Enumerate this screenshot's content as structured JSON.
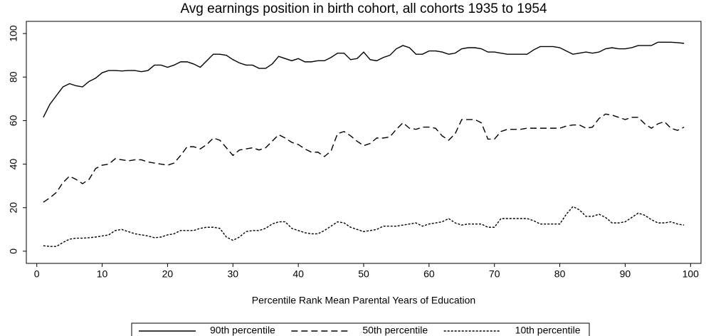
{
  "chart_data": {
    "type": "line",
    "title": "Avg earnings position in birth cohort, all cohorts 1935 to 1954",
    "x_label": "Percentile Rank Mean Parental Years of Education",
    "x": [
      1,
      2,
      3,
      4,
      5,
      6,
      7,
      8,
      9,
      10,
      11,
      12,
      13,
      14,
      15,
      16,
      17,
      18,
      19,
      20,
      21,
      22,
      23,
      24,
      25,
      26,
      27,
      28,
      29,
      30,
      31,
      32,
      33,
      34,
      35,
      36,
      37,
      38,
      39,
      40,
      41,
      42,
      43,
      44,
      45,
      46,
      47,
      48,
      49,
      50,
      51,
      52,
      53,
      54,
      55,
      56,
      57,
      58,
      59,
      60,
      61,
      62,
      63,
      64,
      65,
      66,
      67,
      68,
      69,
      70,
      71,
      72,
      73,
      74,
      75,
      76,
      77,
      78,
      79,
      80,
      81,
      82,
      83,
      84,
      85,
      86,
      87,
      88,
      89,
      90,
      91,
      92,
      93,
      94,
      95,
      96,
      97,
      98,
      99
    ],
    "series": [
      {
        "name": "90th percentile",
        "color": "#000000",
        "line_style": "solid",
        "values": [
          61.5,
          67.5,
          71.5,
          75.5,
          77,
          76,
          75.5,
          78,
          79.5,
          82,
          83,
          83,
          82.8,
          83,
          83,
          82.5,
          83,
          85.5,
          85.5,
          84.5,
          85.5,
          87,
          87,
          86,
          84.5,
          87.5,
          90.5,
          90.5,
          90,
          88,
          86.5,
          85.5,
          85.5,
          84,
          84,
          86,
          89.5,
          88.5,
          87.5,
          88.5,
          87,
          87,
          87.5,
          87.5,
          89,
          91,
          91,
          88,
          88.5,
          91.5,
          88,
          87.5,
          89,
          90,
          93,
          94.5,
          93.5,
          90.5,
          90.5,
          92,
          92,
          91.5,
          90.5,
          91,
          93,
          93.5,
          93.5,
          93,
          91.5,
          91.5,
          91,
          90.5,
          90.5,
          90.5,
          90.5,
          92.5,
          94,
          94,
          94,
          93.5,
          92,
          90.5,
          91,
          91.5,
          91,
          91.5,
          93,
          93.5,
          93,
          93,
          93.5,
          94.5,
          94.5,
          94.5,
          96,
          96,
          96,
          95.8,
          95.5
        ]
      },
      {
        "name": "50th percentile",
        "color": "#000000",
        "line_style": "dashed",
        "values": [
          22.5,
          24.5,
          27,
          31.5,
          34.5,
          33,
          31,
          33,
          38,
          39.5,
          40,
          42.5,
          42,
          41.5,
          42,
          42,
          41,
          40.5,
          40,
          39.5,
          40.5,
          44,
          48,
          48,
          47,
          49,
          52,
          51,
          47.5,
          44,
          46.5,
          47,
          47.5,
          46.5,
          47.5,
          50.5,
          53.5,
          52,
          50,
          49,
          47,
          45.5,
          45.5,
          43.5,
          46,
          54,
          55,
          53,
          50.5,
          48.5,
          49.5,
          52,
          52,
          52.5,
          56,
          59,
          56.5,
          56,
          57,
          57,
          56.5,
          53,
          51,
          54,
          60.5,
          60.5,
          60.5,
          59,
          51.5,
          51.5,
          55,
          56,
          56,
          56,
          56.5,
          56.5,
          56.5,
          56.5,
          56.5,
          56.5,
          57.5,
          58,
          58,
          56.5,
          57,
          61,
          63,
          62.5,
          61.5,
          60.5,
          61.5,
          61.5,
          58.5,
          56.5,
          58.5,
          59.5,
          56.5,
          55.5,
          57
        ]
      },
      {
        "name": "10th percentile",
        "color": "#000000",
        "line_style": "dotted",
        "values": [
          2.5,
          2.2,
          2.2,
          4,
          5.5,
          6,
          6,
          6.2,
          6.5,
          7,
          7.5,
          9.5,
          10,
          9,
          8,
          7.5,
          7,
          6.2,
          6.5,
          7.5,
          8,
          9.5,
          9.5,
          9.5,
          10.5,
          11,
          11,
          10.5,
          6.5,
          5,
          6.5,
          9,
          9.5,
          9.5,
          10.5,
          12.5,
          13.5,
          13.5,
          10.5,
          9.5,
          8.5,
          8,
          8,
          9.5,
          11.5,
          13.5,
          13,
          11,
          10,
          9,
          9.5,
          10,
          11.5,
          11.5,
          11.5,
          12,
          12.5,
          13,
          11.5,
          12.5,
          13,
          13.5,
          15,
          13,
          12,
          12.5,
          12.5,
          12.5,
          11,
          11,
          15,
          15,
          15,
          15,
          15,
          14,
          12.5,
          12.5,
          12.5,
          12.5,
          17,
          20.5,
          19,
          16,
          16,
          17,
          15.5,
          13,
          13,
          13.5,
          15.5,
          17.5,
          16.5,
          14.5,
          13,
          13,
          13.5,
          12.5,
          12
        ]
      }
    ],
    "xlim": [
      -1.6,
      101.6
    ],
    "ylim": [
      -5.6,
      105.6
    ],
    "xticks": [
      0,
      10,
      20,
      30,
      40,
      50,
      60,
      70,
      80,
      90,
      100
    ],
    "yticks": [
      0,
      20,
      40,
      60,
      80,
      100
    ],
    "grid": false,
    "legend": "bottom"
  }
}
